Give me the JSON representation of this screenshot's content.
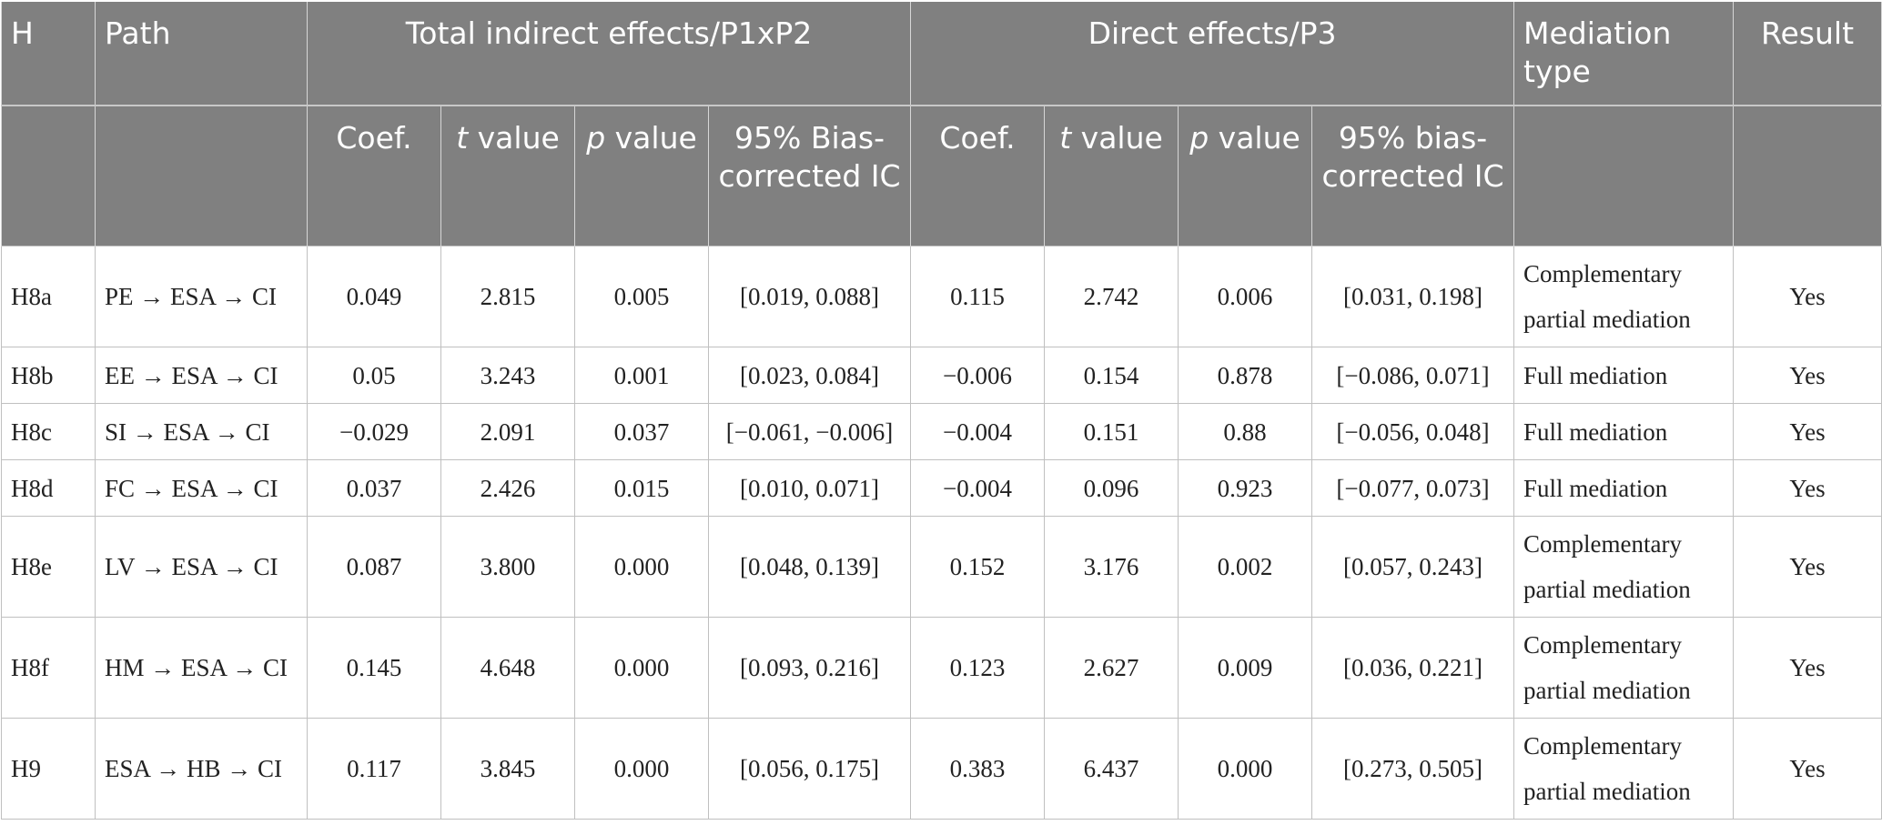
{
  "header": {
    "h": "H",
    "path": "Path",
    "total_indirect": "Total indirect effects/P1xP2",
    "direct": "Direct effects/P3",
    "mediation_type": "Mediation type",
    "result": "Result",
    "coef": "Coef.",
    "t_italic": "t",
    "t_rest": " value",
    "p_italic": "p",
    "p_rest": " value",
    "ci_indirect": "95% Bias-corrected IC",
    "ci_direct": "95% bias-corrected IC"
  },
  "rows": [
    {
      "h": "H8a",
      "path": "PE → ESA → CI",
      "ind_coef": "0.049",
      "ind_t": "2.815",
      "ind_p": "0.005",
      "ind_ci": "[0.019, 0.088]",
      "dir_coef": "0.115",
      "dir_t": "2.742",
      "dir_p": "0.006",
      "dir_ci": "[0.031, 0.198]",
      "type": "Complementary partial mediation",
      "result": "Yes"
    },
    {
      "h": "H8b",
      "path": "EE → ESA → CI",
      "ind_coef": "0.05",
      "ind_t": "3.243",
      "ind_p": "0.001",
      "ind_ci": "[0.023, 0.084]",
      "dir_coef": "−0.006",
      "dir_t": "0.154",
      "dir_p": "0.878",
      "dir_ci": "[−0.086, 0.071]",
      "type": "Full mediation",
      "result": "Yes"
    },
    {
      "h": "H8c",
      "path": "SI → ESA → CI",
      "ind_coef": "−0.029",
      "ind_t": "2.091",
      "ind_p": "0.037",
      "ind_ci": "[−0.061, −0.006]",
      "dir_coef": "−0.004",
      "dir_t": "0.151",
      "dir_p": "0.88",
      "dir_ci": "[−0.056, 0.048]",
      "type": "Full mediation",
      "result": "Yes"
    },
    {
      "h": "H8d",
      "path": "FC → ESA → CI",
      "ind_coef": "0.037",
      "ind_t": "2.426",
      "ind_p": "0.015",
      "ind_ci": "[0.010, 0.071]",
      "dir_coef": "−0.004",
      "dir_t": "0.096",
      "dir_p": "0.923",
      "dir_ci": "[−0.077, 0.073]",
      "type": "Full mediation",
      "result": "Yes"
    },
    {
      "h": "H8e",
      "path": "LV → ESA → CI",
      "ind_coef": "0.087",
      "ind_t": "3.800",
      "ind_p": "0.000",
      "ind_ci": "[0.048, 0.139]",
      "dir_coef": "0.152",
      "dir_t": "3.176",
      "dir_p": "0.002",
      "dir_ci": "[0.057, 0.243]",
      "type": "Complementary partial mediation",
      "result": "Yes"
    },
    {
      "h": "H8f",
      "path": "HM → ESA → CI",
      "ind_coef": "0.145",
      "ind_t": "4.648",
      "ind_p": "0.000",
      "ind_ci": "[0.093, 0.216]",
      "dir_coef": "0.123",
      "dir_t": "2.627",
      "dir_p": "0.009",
      "dir_ci": "[0.036, 0.221]",
      "type": "Complementary partial mediation",
      "result": "Yes"
    },
    {
      "h": "H9",
      "path": "ESA → HB → CI",
      "ind_coef": "0.117",
      "ind_t": "3.845",
      "ind_p": "0.000",
      "ind_ci": "[0.056, 0.175]",
      "dir_coef": "0.383",
      "dir_t": "6.437",
      "dir_p": "0.000",
      "dir_ci": "[0.273, 0.505]",
      "type": "Complementary partial mediation",
      "result": "Yes"
    }
  ]
}
